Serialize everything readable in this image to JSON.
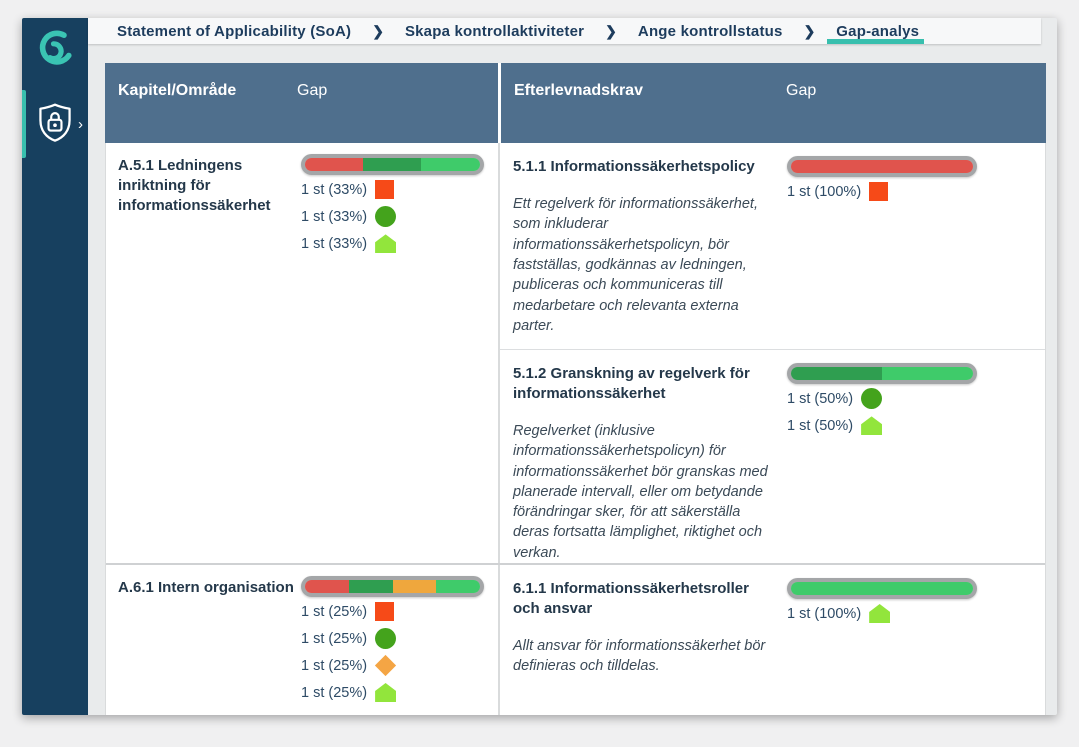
{
  "theme": {
    "teal": "#38bfae",
    "sidebar-bg": "#17405f",
    "navbar-bg": "#f7f8f9",
    "navbar-text": "#1d3c5d",
    "header-bg": "#4f6f8d",
    "page-bg": "#f0f0f1",
    "content-bg": "#e9ebec",
    "border": "#d9dbdc",
    "bar-ring": "#a4a6a8",
    "title-text": "#24384a",
    "desc-text": "#3b4a57",
    "stat-text": "#2e4b66"
  },
  "sidebar": {
    "logo_icon": "app-logo-swirl",
    "item_icon": "shield-lock-icon",
    "chevron": "›"
  },
  "breadcrumb": {
    "separator": "❯",
    "items": [
      {
        "label": "Statement of Applicability (SoA)",
        "active": false
      },
      {
        "label": "Skapa kontrollaktiviteter",
        "active": false
      },
      {
        "label": "Ange kontrollstatus",
        "active": false
      },
      {
        "label": "Gap-analys",
        "active": true
      }
    ]
  },
  "status_colors": {
    "square": {
      "bar": "#e0544d",
      "icon": "#f64a18"
    },
    "circle": {
      "bar": "#2f9e50",
      "icon": "#44a31c"
    },
    "diamond": {
      "bar": "#efa73d",
      "icon": "#f4a544"
    },
    "pentagon": {
      "bar": "#3fcb6a",
      "icon": "#92e53c"
    }
  },
  "table": {
    "header": {
      "col_chapter": "Kapitel/Område",
      "col_gap_left": "Gap",
      "col_requirement": "Efterlevnadskrav",
      "col_gap_right": "Gap"
    },
    "groups": [
      {
        "left": {
          "title": "A.5.1 Ledningens inriktning för informationssäkerhet",
          "gap": {
            "segments": [
              {
                "shape": "square",
                "pct": 33
              },
              {
                "shape": "circle",
                "pct": 33
              },
              {
                "shape": "pentagon",
                "pct": 34
              }
            ],
            "stats": [
              {
                "label": "1 st (33%)",
                "shape": "square"
              },
              {
                "label": "1 st (33%)",
                "shape": "circle"
              },
              {
                "label": "1 st (33%)",
                "shape": "pentagon"
              }
            ]
          }
        },
        "requirements": [
          {
            "title": "5.1.1 Informationssäkerhetspolicy",
            "description": "Ett regelverk för informationssäkerhet, som inkluderar informationssäkerhetspolicyn, bör fastställas, godkännas av ledningen, publiceras och kommuniceras till medarbetare och relevanta externa parter.",
            "gap": {
              "segments": [
                {
                  "shape": "square",
                  "pct": 100
                }
              ],
              "stats": [
                {
                  "label": "1 st (100%)",
                  "shape": "square"
                }
              ]
            }
          },
          {
            "title": "5.1.2 Granskning av regelverk för informationssäkerhet",
            "description": "Regelverket (inklusive informationssäkerhetspolicyn) för informationssäkerhet bör granskas med planerade intervall, eller om betydande förändringar sker, för att säkerställa deras fortsatta lämplighet, riktighet och verkan.",
            "gap": {
              "segments": [
                {
                  "shape": "circle",
                  "pct": 50
                },
                {
                  "shape": "pentagon",
                  "pct": 50
                }
              ],
              "stats": [
                {
                  "label": "1 st (50%)",
                  "shape": "circle"
                },
                {
                  "label": "1 st (50%)",
                  "shape": "pentagon"
                }
              ]
            }
          }
        ]
      },
      {
        "left": {
          "title": "A.6.1 Intern organisation",
          "gap": {
            "segments": [
              {
                "shape": "square",
                "pct": 25
              },
              {
                "shape": "circle",
                "pct": 25
              },
              {
                "shape": "diamond",
                "pct": 25
              },
              {
                "shape": "pentagon",
                "pct": 25
              }
            ],
            "stats": [
              {
                "label": "1 st (25%)",
                "shape": "square"
              },
              {
                "label": "1 st (25%)",
                "shape": "circle"
              },
              {
                "label": "1 st (25%)",
                "shape": "diamond"
              },
              {
                "label": "1 st (25%)",
                "shape": "pentagon"
              }
            ]
          }
        },
        "requirements": [
          {
            "title": "6.1.1 Informationssäkerhetsroller och ansvar",
            "description": "Allt ansvar för informationssäkerhet bör definieras och tilldelas.",
            "gap": {
              "segments": [
                {
                  "shape": "pentagon",
                  "pct": 100
                }
              ],
              "stats": [
                {
                  "label": "1 st (100%)",
                  "shape": "pentagon"
                }
              ]
            }
          }
        ]
      }
    ]
  }
}
